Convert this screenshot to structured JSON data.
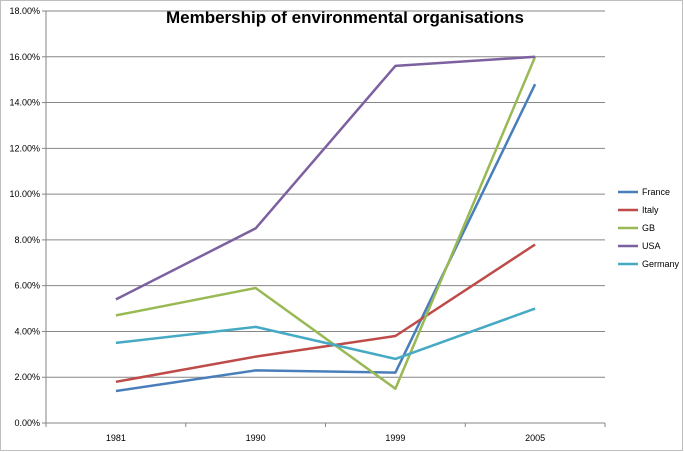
{
  "chart_data": {
    "type": "line",
    "title": "Membership of environmental organisations",
    "xlabel": "",
    "ylabel": "",
    "categories": [
      "1981",
      "1990",
      "1999",
      "2005"
    ],
    "ylim": [
      0,
      18
    ],
    "yticks": [
      "0.00%",
      "2.00%",
      "4.00%",
      "6.00%",
      "8.00%",
      "10.00%",
      "12.00%",
      "14.00%",
      "16.00%",
      "18.00%"
    ],
    "grid": true,
    "legend_position": "right",
    "series": [
      {
        "name": "France",
        "color": "#4a7ebb",
        "values": [
          1.4,
          2.3,
          2.2,
          14.8
        ]
      },
      {
        "name": "Italy",
        "color": "#be4b48",
        "values": [
          1.8,
          2.9,
          3.8,
          7.8
        ]
      },
      {
        "name": "GB",
        "color": "#98b954",
        "values": [
          4.7,
          5.9,
          1.5,
          16.0
        ]
      },
      {
        "name": "USA",
        "color": "#7d60a0",
        "values": [
          5.4,
          8.5,
          15.6,
          16.0
        ]
      },
      {
        "name": "Germany",
        "color": "#46aac5",
        "values": [
          3.5,
          4.2,
          2.8,
          5.0
        ]
      }
    ]
  }
}
